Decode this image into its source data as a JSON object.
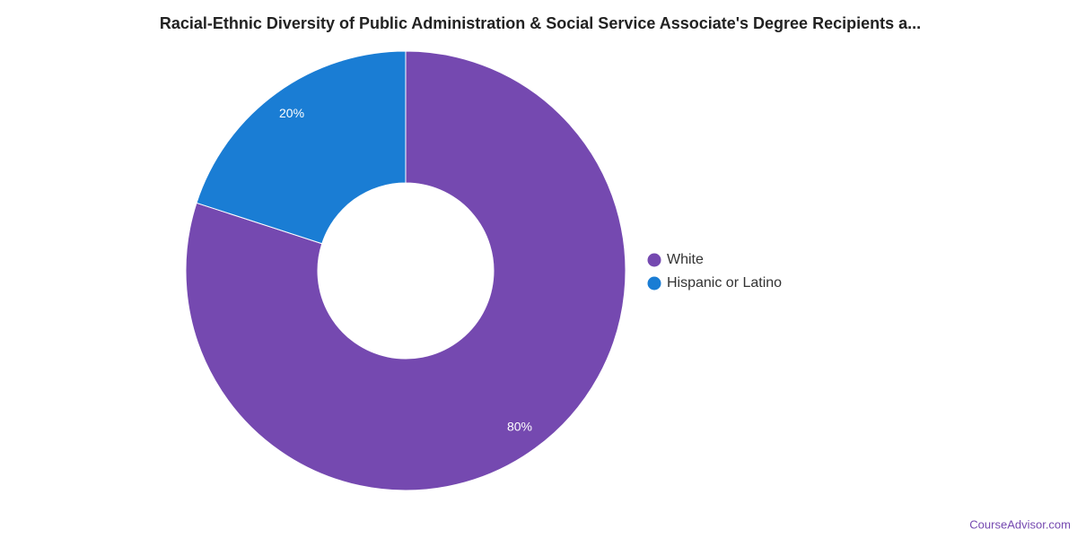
{
  "chart_data": {
    "type": "donut",
    "title": "Racial-Ethnic Diversity of Public Administration & Social Service Associate's Degree Recipients a...",
    "categories": [
      "White",
      "Hispanic or Latino"
    ],
    "values": [
      80,
      20
    ],
    "value_labels": [
      "80%",
      "20%"
    ],
    "colors": [
      "#7549b0",
      "#1a7dd4"
    ],
    "legend": "right",
    "credit": "CourseAdvisor.com"
  }
}
